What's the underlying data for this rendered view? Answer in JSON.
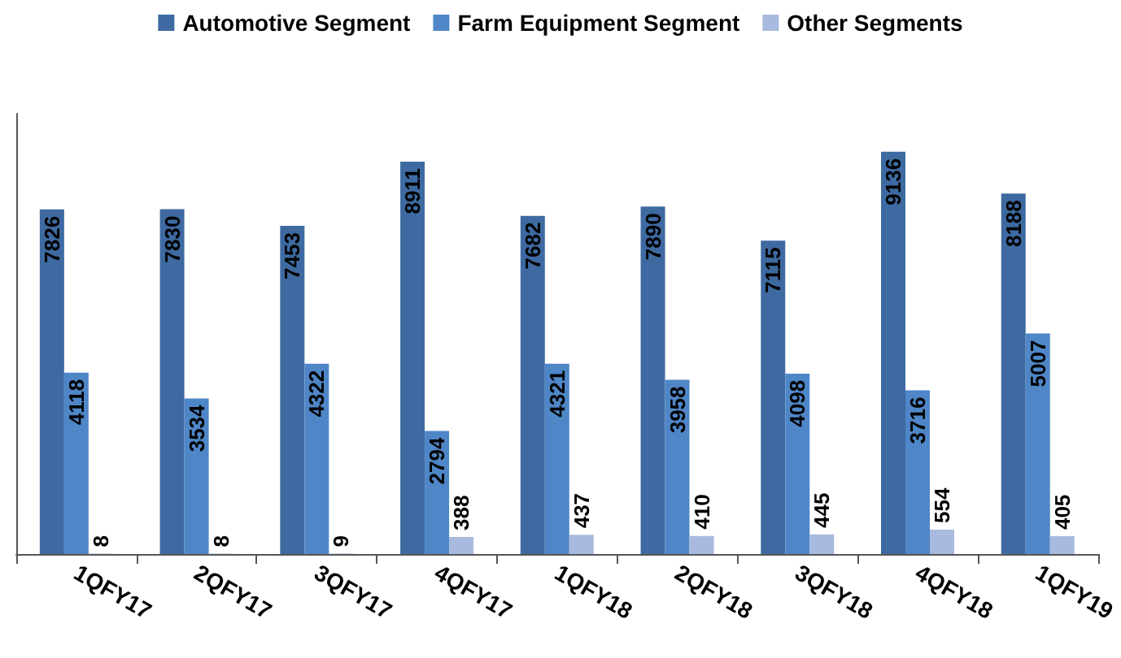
{
  "chart_data": {
    "type": "bar",
    "categories": [
      "1QFY17",
      "2QFY17",
      "3QFY17",
      "4QFY17",
      "1QFY18",
      "2QFY18",
      "3QFY18",
      "4QFY18",
      "1QFY19"
    ],
    "series": [
      {
        "name": "Automotive Segment",
        "color": "#3e6aa1",
        "values": [
          7826,
          7830,
          7453,
          8911,
          7682,
          7890,
          7115,
          9136,
          8188
        ]
      },
      {
        "name": "Farm Equipment Segment",
        "color": "#4f86c7",
        "values": [
          4118,
          3534,
          4322,
          2794,
          4321,
          3958,
          4098,
          3716,
          5007
        ]
      },
      {
        "name": "Other Segments",
        "color": "#a8badf",
        "values": [
          8,
          8,
          9,
          388,
          437,
          410,
          445,
          554,
          405
        ]
      }
    ],
    "data_labels": true,
    "legend": "top",
    "grid": false,
    "tick_labels": "x"
  }
}
